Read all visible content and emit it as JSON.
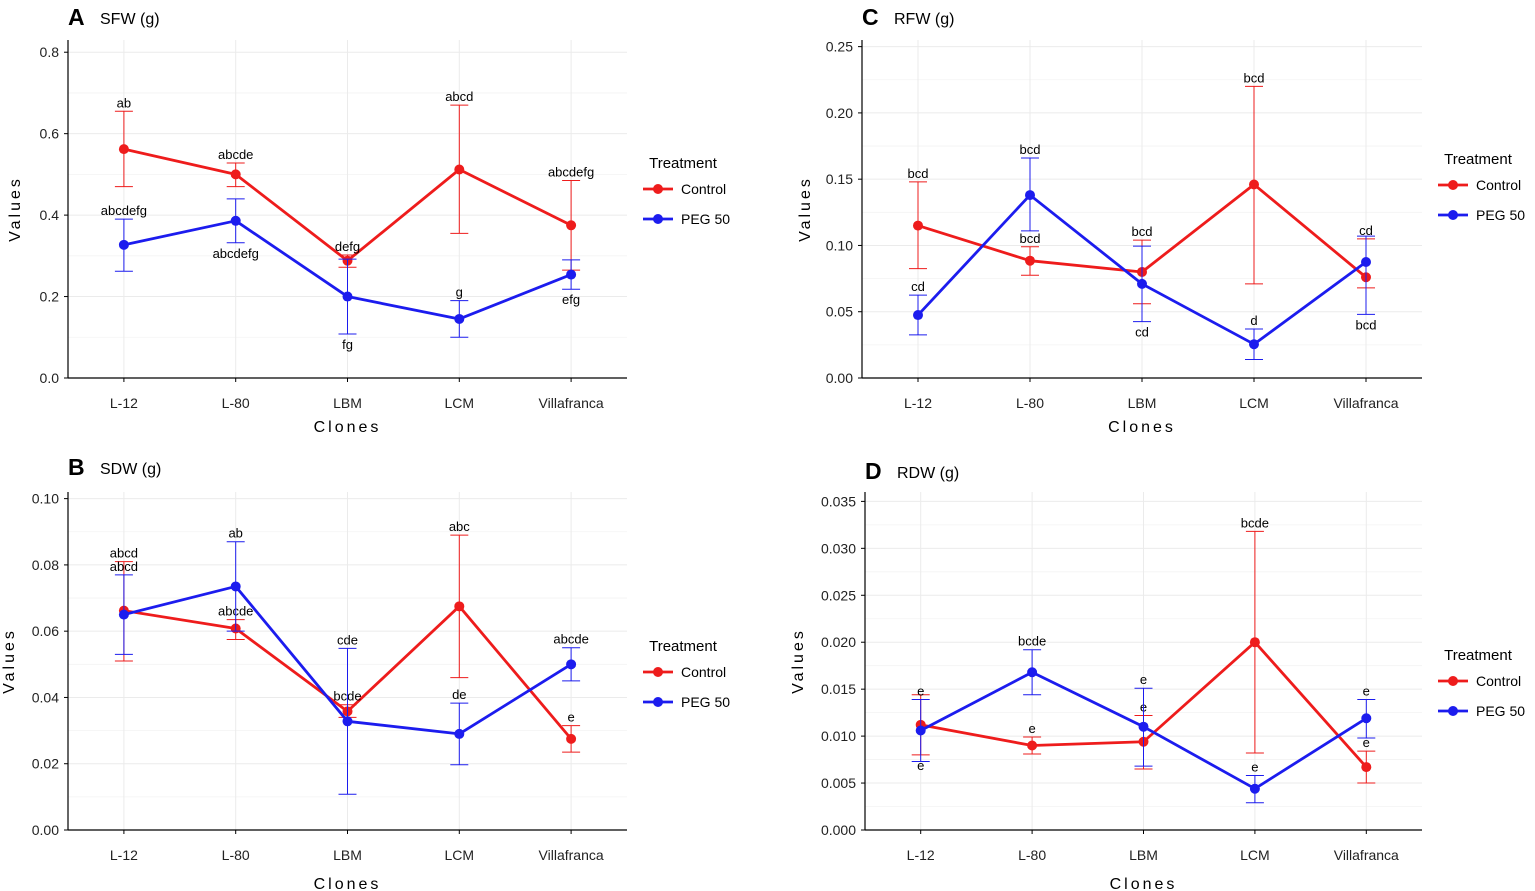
{
  "colors": {
    "control": "#ee1c1c",
    "peg": "#1c1cee",
    "grid": "#ebebeb",
    "axis": "#000000"
  },
  "legend": {
    "title": "Treatment",
    "items": [
      "Control",
      "PEG 50"
    ]
  },
  "chart_data": [
    {
      "panel": "A",
      "title": "SFW (g)",
      "type": "line",
      "xlabel": "Clones",
      "ylabel": "Values",
      "categories": [
        "L-12",
        "L-80",
        "LBM",
        "LCM",
        "Villafranca"
      ],
      "ylim": [
        0,
        0.83
      ],
      "yticks": [
        0.0,
        0.2,
        0.4,
        0.6,
        0.8
      ],
      "decimals": 1,
      "series": [
        {
          "name": "Control",
          "values": [
            0.562,
            0.5,
            0.288,
            0.512,
            0.375
          ],
          "lower": [
            0.47,
            0.47,
            0.272,
            0.355,
            0.265
          ],
          "upper": [
            0.655,
            0.528,
            0.302,
            0.67,
            0.485
          ],
          "labels": [
            "ab",
            "abcde",
            "defg",
            "abcd",
            "abcdefg"
          ],
          "label_pos": [
            "above",
            "above",
            "above",
            "above",
            "above"
          ]
        },
        {
          "name": "PEG 50",
          "values": [
            0.327,
            0.386,
            0.2,
            0.145,
            0.254
          ],
          "lower": [
            0.262,
            0.332,
            0.108,
            0.1,
            0.218
          ],
          "upper": [
            0.39,
            0.44,
            0.292,
            0.19,
            0.29
          ],
          "labels": [
            "abcdefg",
            "abcdefg",
            "fg",
            "g",
            "efg"
          ],
          "label_pos": [
            "above",
            "below",
            "below",
            "above",
            "below"
          ]
        }
      ]
    },
    {
      "panel": "B",
      "title": "SDW (g)",
      "type": "line",
      "xlabel": "Clones",
      "ylabel": "Values",
      "categories": [
        "L-12",
        "L-80",
        "LBM",
        "LCM",
        "Villafranca"
      ],
      "ylim": [
        0,
        0.102
      ],
      "yticks": [
        0.0,
        0.02,
        0.04,
        0.06,
        0.08,
        0.1
      ],
      "decimals": 2,
      "series": [
        {
          "name": "Control",
          "values": [
            0.0662,
            0.0608,
            0.0358,
            0.0675,
            0.0275
          ],
          "lower": [
            0.051,
            0.0575,
            0.034,
            0.046,
            0.0235
          ],
          "upper": [
            0.081,
            0.0635,
            0.0378,
            0.089,
            0.0315
          ],
          "labels": [
            "abcd",
            "abcde",
            "bcde",
            "abc",
            "e"
          ],
          "label_pos": [
            "above",
            "above",
            "above",
            "above",
            "above"
          ]
        },
        {
          "name": "PEG 50",
          "values": [
            0.065,
            0.0735,
            0.0328,
            0.029,
            0.05
          ],
          "lower": [
            0.053,
            0.06,
            0.0108,
            0.0197,
            0.045
          ],
          "upper": [
            0.077,
            0.087,
            0.0548,
            0.0383,
            0.055
          ],
          "labels": [
            "abcd",
            "ab",
            "cde",
            "de",
            "abcde"
          ],
          "label_pos": [
            "above",
            "above",
            "above",
            "above",
            "above"
          ]
        }
      ]
    },
    {
      "panel": "C",
      "title": "RFW (g)",
      "type": "line",
      "xlabel": "Clones",
      "ylabel": "Values",
      "categories": [
        "L-12",
        "L-80",
        "LBM",
        "LCM",
        "Villafranca"
      ],
      "ylim": [
        0,
        0.255
      ],
      "yticks": [
        0.0,
        0.05,
        0.1,
        0.15,
        0.2,
        0.25
      ],
      "decimals": 2,
      "series": [
        {
          "name": "Control",
          "values": [
            0.115,
            0.0885,
            0.08,
            0.146,
            0.076
          ],
          "lower": [
            0.0825,
            0.0775,
            0.056,
            0.071,
            0.068
          ],
          "upper": [
            0.148,
            0.099,
            0.104,
            0.22,
            0.105
          ],
          "labels": [
            "bcd",
            "bcd",
            "bcd",
            "bcd",
            "cd"
          ],
          "label_pos": [
            "above",
            "above",
            "above",
            "above",
            "above"
          ]
        },
        {
          "name": "PEG 50",
          "values": [
            0.0475,
            0.138,
            0.071,
            0.0255,
            0.0875
          ],
          "lower": [
            0.0325,
            0.111,
            0.0425,
            0.014,
            0.048
          ],
          "upper": [
            0.0625,
            0.166,
            0.0995,
            0.037,
            0.107
          ],
          "labels": [
            "cd",
            "bcd",
            "cd",
            "d",
            "bcd"
          ],
          "label_pos": [
            "above",
            "above",
            "below",
            "above",
            "below"
          ]
        }
      ]
    },
    {
      "panel": "D",
      "title": "RDW (g)",
      "type": "line",
      "xlabel": "Clones",
      "ylabel": "Values",
      "categories": [
        "L-12",
        "L-80",
        "LBM",
        "LCM",
        "Villafranca"
      ],
      "ylim": [
        0,
        0.036
      ],
      "yticks": [
        0.0,
        0.005,
        0.01,
        0.015,
        0.02,
        0.025,
        0.03,
        0.035
      ],
      "decimals": 3,
      "series": [
        {
          "name": "Control",
          "values": [
            0.0112,
            0.009,
            0.0094,
            0.02,
            0.0067
          ],
          "lower": [
            0.008,
            0.0081,
            0.0065,
            0.0082,
            0.005
          ],
          "upper": [
            0.0144,
            0.0099,
            0.0122,
            0.0318,
            0.0084
          ],
          "labels": [
            "e",
            "e",
            "e",
            "bcde",
            "e"
          ],
          "label_pos": [
            "below",
            "above",
            "above",
            "above",
            "above"
          ]
        },
        {
          "name": "PEG 50",
          "values": [
            0.0106,
            0.0168,
            0.011,
            0.0044,
            0.0119
          ],
          "lower": [
            0.0073,
            0.0144,
            0.0068,
            0.0029,
            0.0098
          ],
          "upper": [
            0.0139,
            0.0192,
            0.0151,
            0.0058,
            0.0139
          ],
          "labels": [
            "e",
            "bcde",
            "e",
            "e",
            "e"
          ],
          "label_pos": [
            "above",
            "above",
            "above",
            "above",
            "above"
          ]
        }
      ]
    }
  ]
}
